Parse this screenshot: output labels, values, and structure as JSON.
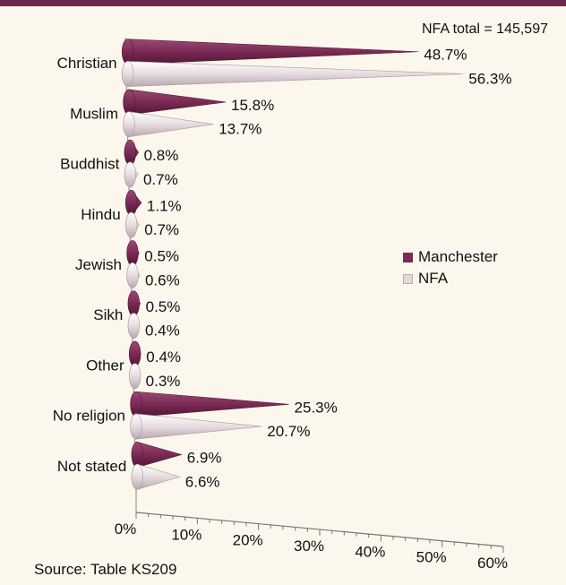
{
  "notes": {
    "nfa_total": "NFA total = 145,597",
    "source": "Source: Table KS209"
  },
  "legend": {
    "manchester": "Manchester",
    "nfa": "NFA"
  },
  "colors": {
    "manchester": "#7a2a53",
    "nfa": "#e3d7da",
    "frame": "#6b2a4d",
    "background": "#fbf7ed"
  },
  "chart_data": {
    "type": "bar",
    "orientation": "horizontal",
    "categories": [
      "Christian",
      "Muslim",
      "Buddhist",
      "Hindu",
      "Jewish",
      "Sikh",
      "Other",
      "No religion",
      "Not stated"
    ],
    "series": [
      {
        "name": "Manchester",
        "values": [
          48.7,
          15.8,
          0.8,
          1.1,
          0.5,
          0.5,
          0.4,
          25.3,
          6.9
        ],
        "labels": [
          "48.7%",
          "15.8%",
          "0.8%",
          "1.1%",
          "0.5%",
          "0.5%",
          "0.4%",
          "25.3%",
          "6.9%"
        ]
      },
      {
        "name": "NFA",
        "values": [
          56.3,
          13.7,
          0.7,
          0.7,
          0.6,
          0.4,
          0.3,
          20.7,
          6.6
        ],
        "labels": [
          "56.3%",
          "13.7%",
          "0.7%",
          "0.7%",
          "0.6%",
          "0.4%",
          "0.3%",
          "20.7%",
          "6.6%"
        ]
      }
    ],
    "xlim": [
      0,
      60
    ],
    "xticks": [
      "0%",
      "10%",
      "20%",
      "30%",
      "40%",
      "50%",
      "60%"
    ],
    "grid": false,
    "legend_position": "right"
  }
}
